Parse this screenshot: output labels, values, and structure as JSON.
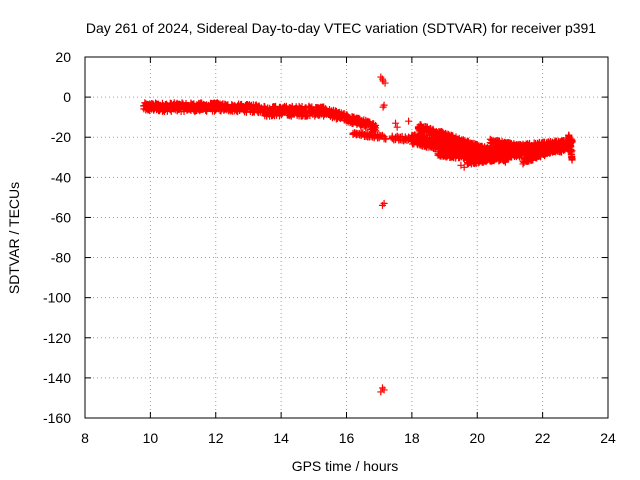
{
  "chart_data": {
    "type": "scatter",
    "title": "Day 261 of 2024, Sidereal Day-to-day VTEC variation (SDTVAR) for receiver p391",
    "xlabel": "GPS time / hours",
    "ylabel": "SDTVAR / TECUs",
    "xlim": [
      8,
      24
    ],
    "ylim": [
      -160,
      20
    ],
    "xticks": [
      8,
      10,
      12,
      14,
      16,
      18,
      20,
      22,
      24
    ],
    "yticks": [
      20,
      0,
      -20,
      -40,
      -60,
      -80,
      -100,
      -120,
      -140,
      -160
    ],
    "xtick_labels": [
      "8",
      "10",
      "12",
      "14",
      "16",
      "18",
      "20",
      "22",
      "24"
    ],
    "ytick_labels": [
      "20",
      "0",
      "-20",
      "-40",
      "-60",
      "-80",
      "-100",
      "-120",
      "-140",
      "-160"
    ],
    "grid": true,
    "marker": "plus",
    "colors": {
      "points": "#ff0000",
      "grid": "#a0a0a0",
      "frame": "#000000"
    },
    "series": [
      {
        "name": "SDTVAR",
        "bands": [
          {
            "x0": 9.8,
            "x1": 12.1,
            "y0": -5,
            "y1": -5,
            "spread": 2.2,
            "step": 0.03
          },
          {
            "x0": 12.1,
            "x1": 13.5,
            "y0": -5,
            "y1": -6,
            "spread": 2.0,
            "step": 0.03
          },
          {
            "x0": 13.5,
            "x1": 15.3,
            "y0": -7,
            "y1": -7,
            "spread": 2.6,
            "step": 0.03
          },
          {
            "x0": 15.3,
            "x1": 16.9,
            "y0": -7,
            "y1": -15,
            "spread": 2.0,
            "step": 0.03
          },
          {
            "x0": 16.2,
            "x1": 17.2,
            "y0": -18,
            "y1": -20,
            "spread": 1.0,
            "step": 0.05
          },
          {
            "x0": 17.4,
            "x1": 17.9,
            "y0": -20,
            "y1": -21,
            "spread": 1.2,
            "step": 0.05
          },
          {
            "x0": 18.2,
            "x1": 20.5,
            "y0": -15,
            "y1": -28,
            "spread": 1.8,
            "step": 0.025
          },
          {
            "x0": 18.0,
            "x1": 20.9,
            "y0": -21,
            "y1": -30,
            "spread": 2.6,
            "step": 0.02
          },
          {
            "x0": 18.8,
            "x1": 20.5,
            "y0": -28,
            "y1": -31,
            "spread": 1.5,
            "step": 0.03
          },
          {
            "x0": 19.7,
            "x1": 21.3,
            "y0": -32,
            "y1": -28,
            "spread": 1.8,
            "step": 0.03
          },
          {
            "x0": 20.3,
            "x1": 22.9,
            "y0": -28,
            "y1": -24,
            "spread": 3.0,
            "step": 0.02
          },
          {
            "x0": 20.4,
            "x1": 21.8,
            "y0": -22,
            "y1": -26,
            "spread": 1.0,
            "step": 0.04
          },
          {
            "x0": 21.4,
            "x1": 22.9,
            "y0": -32,
            "y1": -22,
            "spread": 1.6,
            "step": 0.03
          },
          {
            "x0": 22.8,
            "x1": 22.9,
            "y0": -19,
            "y1": -31,
            "spread": 0.5,
            "step": 0.01
          }
        ],
        "points": [
          [
            17.05,
            10
          ],
          [
            17.12,
            8
          ],
          [
            17.18,
            7
          ],
          [
            17.1,
            9
          ],
          [
            17.15,
            -4
          ],
          [
            17.12,
            -5
          ],
          [
            17.15,
            -53
          ],
          [
            17.1,
            -54
          ],
          [
            17.1,
            -145
          ],
          [
            17.05,
            -147
          ],
          [
            17.15,
            -146
          ],
          [
            17.5,
            -13
          ],
          [
            17.55,
            -15
          ],
          [
            17.9,
            -12
          ],
          [
            18.0,
            -20
          ],
          [
            18.3,
            -19
          ],
          [
            19.5,
            -34
          ],
          [
            19.6,
            -35
          ]
        ]
      }
    ]
  }
}
